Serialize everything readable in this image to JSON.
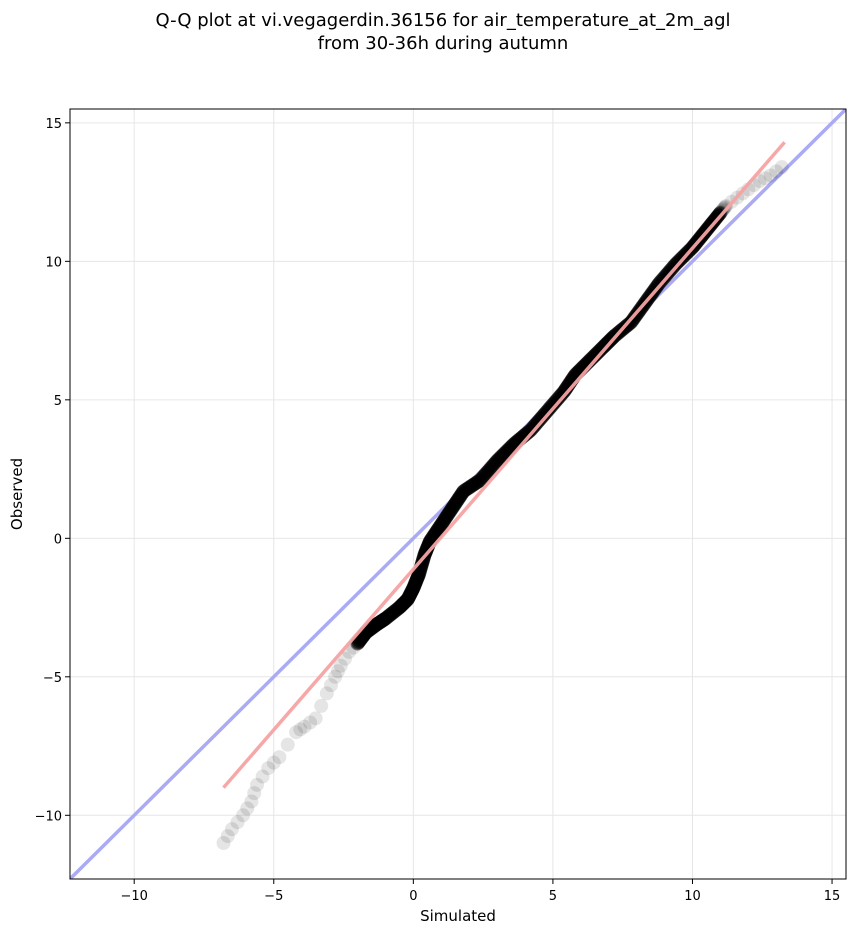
{
  "chart_data": {
    "type": "scatter",
    "title": [
      "Q-Q plot at vi.vegagerdin.36156 for air_temperature_at_2m_agl",
      "from 30-36h during autumn"
    ],
    "xlabel": "Simulated",
    "ylabel": "Observed",
    "xlim": [
      -12.3,
      15.5
    ],
    "ylim": [
      -12.3,
      15.5
    ],
    "xticks": [
      -10,
      -5,
      0,
      5,
      10,
      15
    ],
    "yticks": [
      -10,
      -5,
      0,
      5,
      10,
      15
    ],
    "tick_labels": [
      "−10",
      "−5",
      "0",
      "5",
      "10",
      "15"
    ],
    "grid": true,
    "reference_line": {
      "x": [
        -12.3,
        15.5
      ],
      "y": [
        -12.3,
        15.5
      ],
      "color": "#aaaaf5"
    },
    "fit_line": {
      "x": [
        -6.8,
        13.3
      ],
      "y": [
        -9.0,
        14.3
      ],
      "color": "#f5a3a3"
    },
    "quantile_curve": {
      "x": [
        -6.8,
        -6.5,
        -6.1,
        -5.8,
        -5.6,
        -5.2,
        -4.8,
        -4.2,
        -3.9,
        -3.5,
        -3.1,
        -2.8,
        -2.6,
        -2.3,
        -2.0,
        -1.7,
        -1.3,
        -1.0,
        -0.5,
        -0.2,
        0.0,
        0.2,
        0.4,
        0.6,
        1.0,
        1.4,
        1.8,
        2.4,
        3.0,
        3.6,
        4.2,
        4.8,
        5.4,
        5.8,
        6.3,
        6.8,
        7.2,
        7.8,
        8.3,
        8.8,
        9.4,
        10.0,
        10.4,
        10.8,
        11.2,
        11.6,
        12.0,
        12.4,
        12.8,
        13.2
      ],
      "y": [
        -11.0,
        -10.5,
        -10.0,
        -9.5,
        -8.9,
        -8.3,
        -7.9,
        -7.0,
        -6.8,
        -6.5,
        -5.6,
        -5.0,
        -4.6,
        -4.1,
        -3.8,
        -3.4,
        -3.1,
        -2.9,
        -2.5,
        -2.2,
        -1.8,
        -1.3,
        -0.6,
        -0.1,
        0.5,
        1.1,
        1.7,
        2.1,
        2.8,
        3.4,
        3.9,
        4.6,
        5.3,
        5.9,
        6.4,
        6.9,
        7.3,
        7.8,
        8.5,
        9.2,
        9.9,
        10.5,
        11.0,
        11.5,
        12.0,
        12.3,
        12.6,
        12.9,
        13.1,
        13.4
      ]
    }
  }
}
